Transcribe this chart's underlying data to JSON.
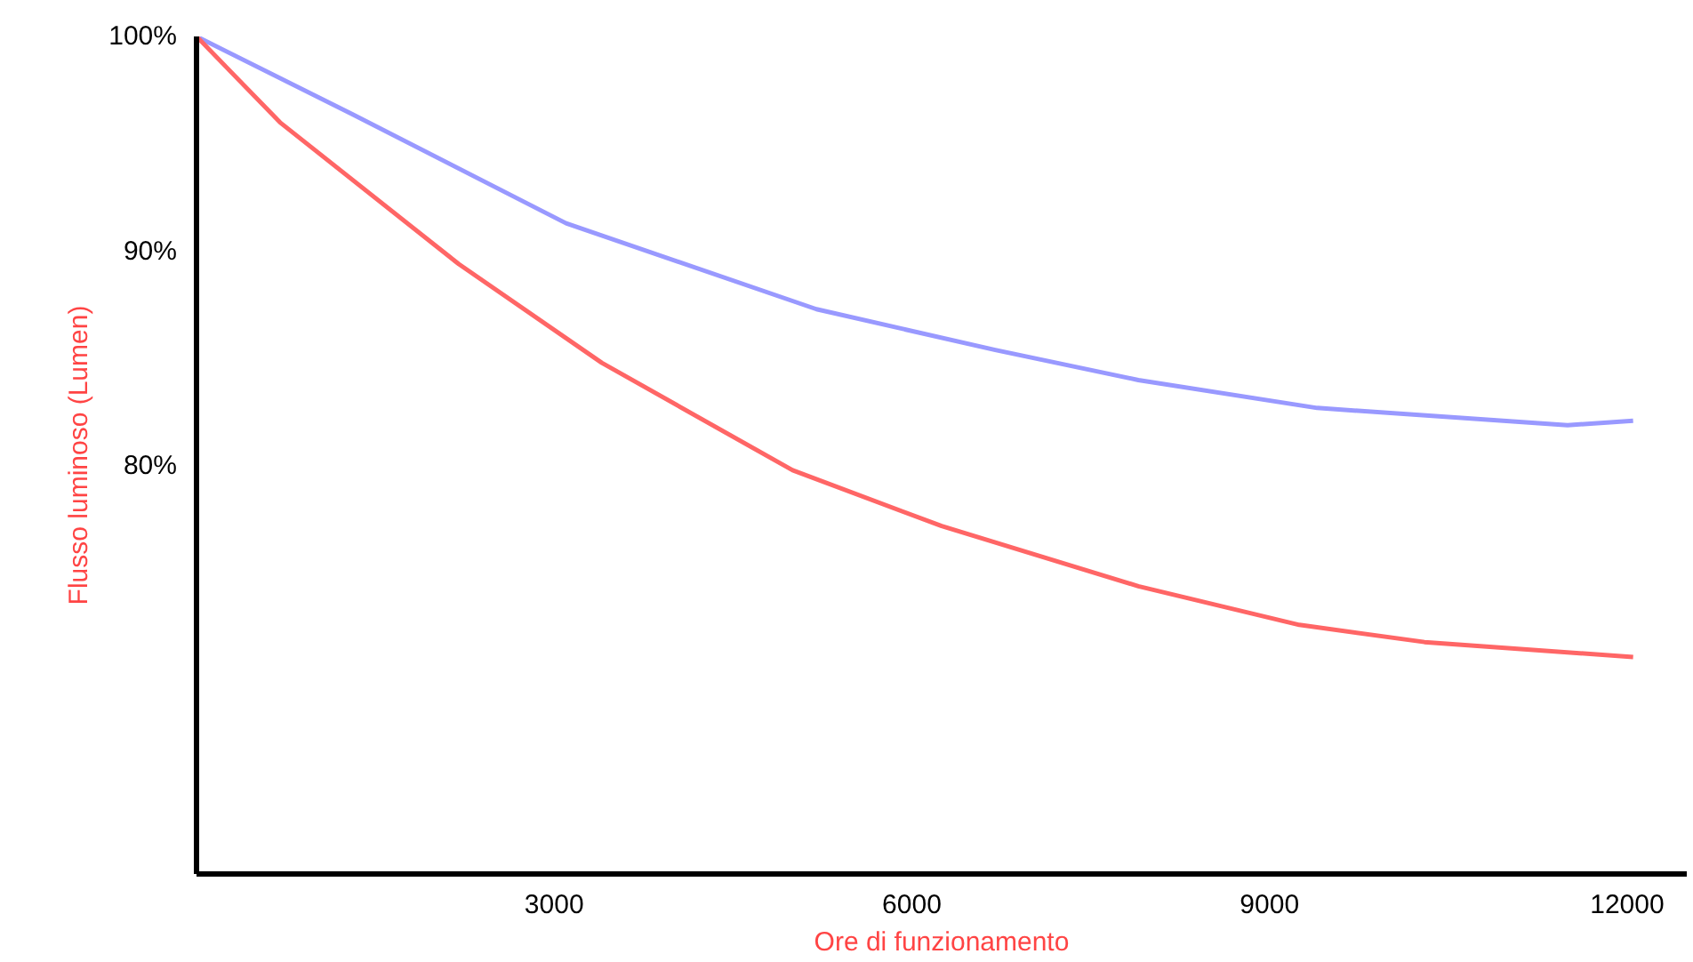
{
  "chart_data": {
    "type": "line",
    "xlabel": "Ore di funzionamento",
    "ylabel": "Flusso luminoso (Lumen)",
    "xlim": [
      0,
      12500
    ],
    "ylim": [
      61,
      100
    ],
    "xticks": [
      3000,
      6000,
      9000,
      12000
    ],
    "yticks": [
      {
        "value": 100,
        "label": "100%"
      },
      {
        "value": 90,
        "label": "90%"
      },
      {
        "value": 80,
        "label": "80%"
      }
    ],
    "grid": false,
    "series": [
      {
        "color": "#9999ff",
        "x": [
          0,
          1300,
          3100,
          5200,
          6700,
          7900,
          9400,
          11500,
          12050
        ],
        "values": [
          100,
          96.4,
          91.3,
          87.3,
          85.4,
          84.0,
          82.7,
          81.9,
          82.1
        ]
      },
      {
        "color": "#ff6666",
        "x": [
          0,
          700,
          2200,
          3400,
          5000,
          6250,
          7900,
          9250,
          10300,
          12050
        ],
        "values": [
          100,
          96.0,
          89.4,
          84.8,
          79.8,
          77.2,
          74.4,
          72.6,
          71.8,
          71.1
        ]
      }
    ]
  }
}
